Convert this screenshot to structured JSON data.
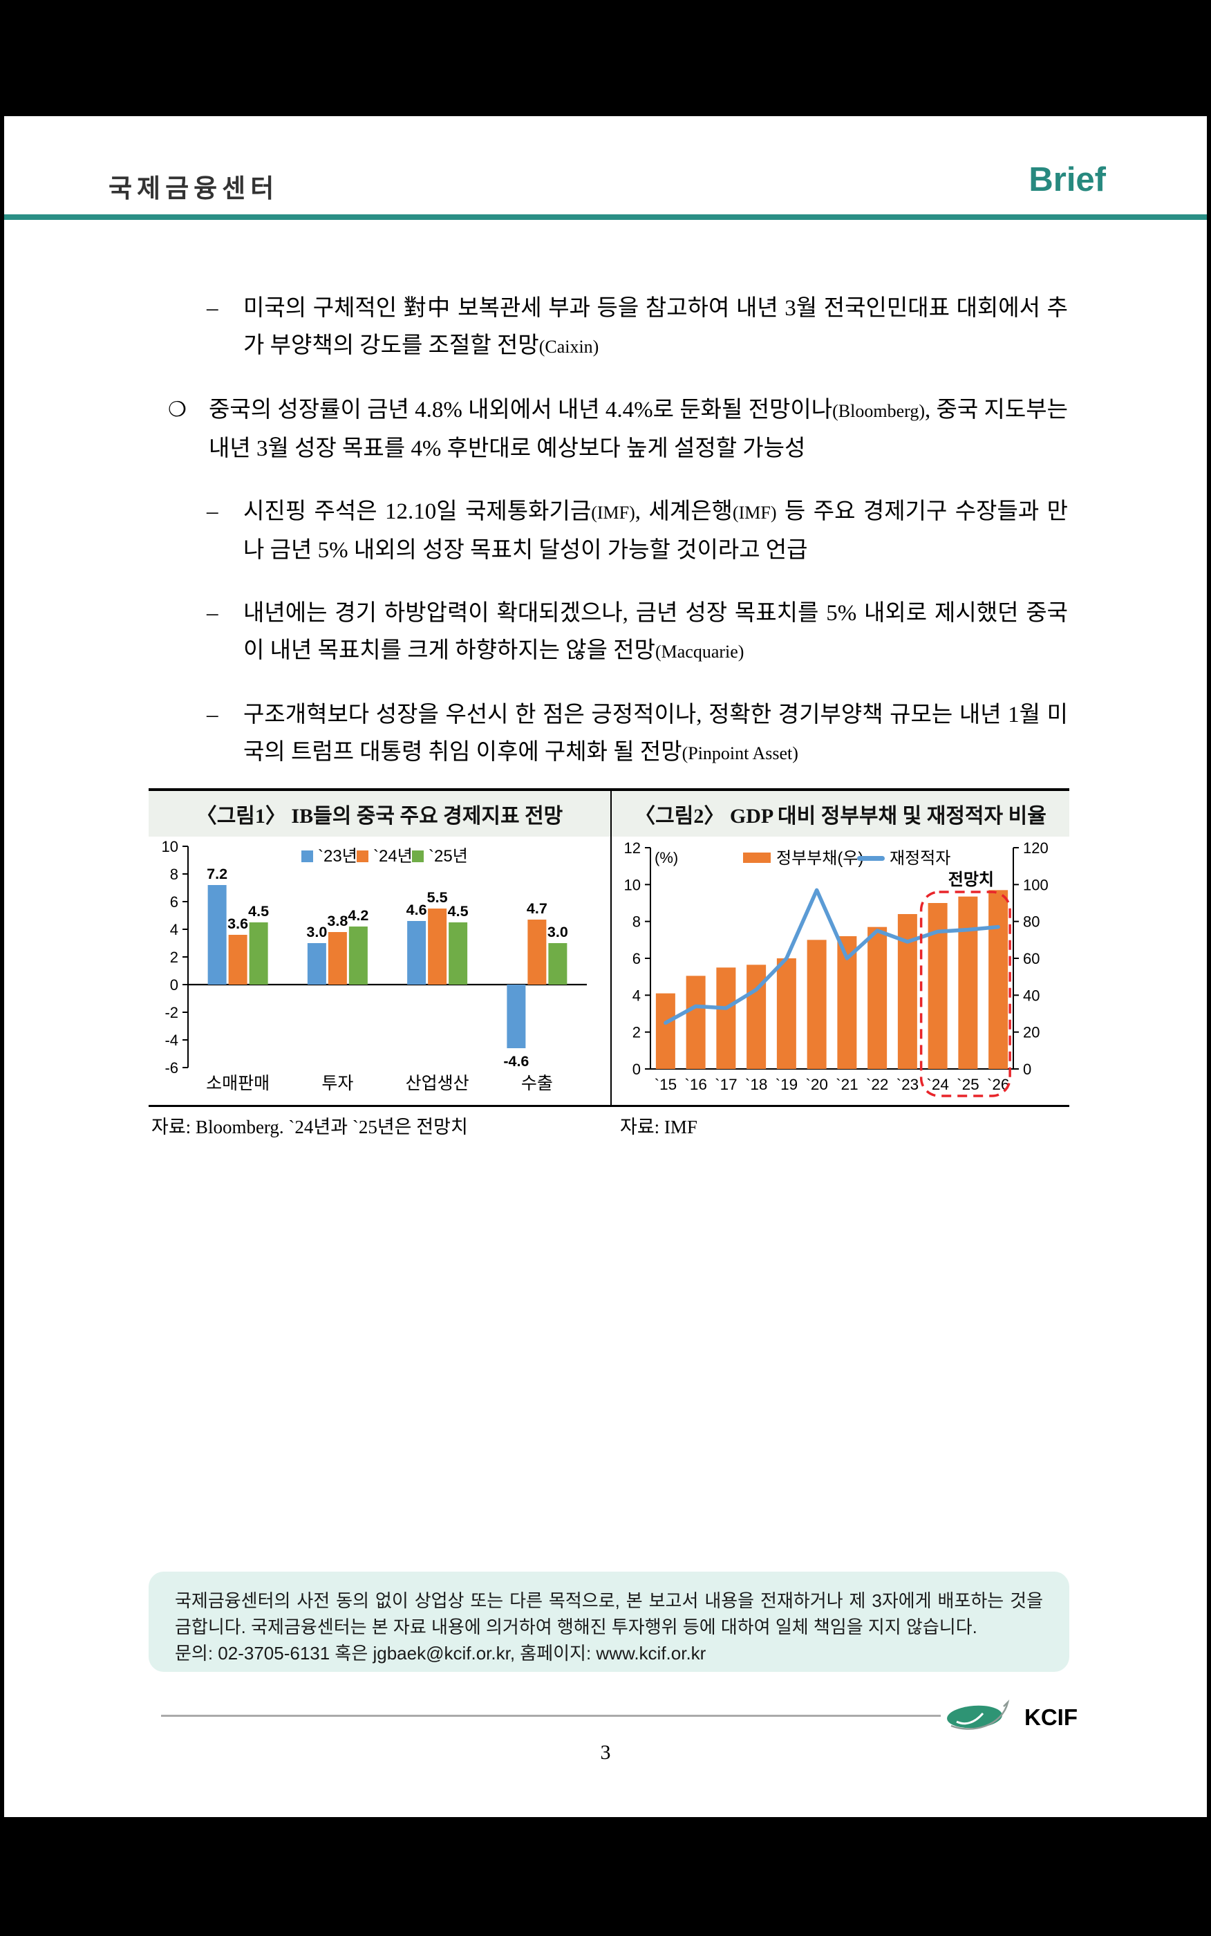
{
  "header": {
    "brand": "국제금융센터",
    "brief": "Brief"
  },
  "bullets": [
    {
      "marker": "–",
      "level": 2,
      "segments": [
        {
          "text": "미국의 구체적인 對中 보복관세 부과 등을 참고하여 내년 3월 전국인민대표 대회에서 추가 부양책의 강도를 조절할 전망",
          "small": false
        },
        {
          "text": "(Caixin)",
          "small": true
        }
      ]
    },
    {
      "marker": "❍",
      "level": 1,
      "segments": [
        {
          "text": "중국의 성장률이 금년 4.8% 내외에서 내년 4.4%로 둔화될 전망이나",
          "small": false
        },
        {
          "text": "(Bloomberg)",
          "small": true
        },
        {
          "text": ", 중국 지도부는 내년 3월 성장 목표를 4% 후반대로 예상보다 높게 설정할 가능성",
          "small": false
        }
      ]
    },
    {
      "marker": "–",
      "level": 2,
      "segments": [
        {
          "text": "시진핑 주석은 12.10일 국제통화기금",
          "small": false
        },
        {
          "text": "(IMF)",
          "small": true
        },
        {
          "text": ", 세계은행",
          "small": false
        },
        {
          "text": "(IMF)",
          "small": true
        },
        {
          "text": " 등 주요 경제기구 수장들과 만나 금년 5% 내외의 성장 목표치 달성이 가능할 것이라고 언급",
          "small": false
        }
      ]
    },
    {
      "marker": "–",
      "level": 2,
      "segments": [
        {
          "text": "내년에는 경기 하방압력이 확대되겠으나, 금년 성장 목표치를 5% 내외로 제시했던 중국이 내년 목표치를 크게 하향하지는 않을 전망",
          "small": false
        },
        {
          "text": "(Macquarie)",
          "small": true
        }
      ]
    },
    {
      "marker": "–",
      "level": 2,
      "segments": [
        {
          "text": "구조개혁보다 성장을 우선시 한 점은 긍정적이나, 정확한 경기부양책 규모는 내년 1월 미국의 트럼프 대통령 취임 이후에 구체화 될 전망",
          "small": false
        },
        {
          "text": "(Pinpoint Asset)",
          "small": true
        }
      ]
    }
  ],
  "figures": {
    "fig1_title": "〈그림1〉 IB들의 중국 주요 경제지표 전망",
    "fig2_title": "〈그림2〉 GDP 대비 정부부채 및 재정적자 비율",
    "fig1_source": "자료: Bloomberg. `24년과 `25년은 전망치",
    "fig2_source": "자료: IMF"
  },
  "chart_data": [
    {
      "type": "bar",
      "title": "IB들의 중국 주요 경제지표 전망",
      "categories": [
        "소매판매",
        "투자",
        "산업생산",
        "수출"
      ],
      "series": [
        {
          "name": "`23년",
          "color": "#5B9BD5",
          "values": [
            7.2,
            3.0,
            4.6,
            -4.6
          ]
        },
        {
          "name": "`24년",
          "color": "#ED7D31",
          "values": [
            3.6,
            3.8,
            5.5,
            4.7
          ]
        },
        {
          "name": "`25년",
          "color": "#70AD47",
          "values": [
            4.5,
            4.2,
            4.5,
            3.0
          ]
        }
      ],
      "ylim": [
        -6,
        10
      ],
      "ytick_step": 2,
      "data_labels": true,
      "grid": false,
      "legend_position": "top"
    },
    {
      "type": "bar+line",
      "title": "GDP 대비 정부부채 및 재정적자 비율",
      "categories": [
        "`15",
        "`16",
        "`17",
        "`18",
        "`19",
        "`20",
        "`21",
        "`22",
        "`23",
        "`24",
        "`25",
        "`26"
      ],
      "left_axis": {
        "label": "(%)",
        "range": [
          0,
          12
        ],
        "step": 2
      },
      "right_axis": {
        "range": [
          0,
          120
        ],
        "step": 20
      },
      "series": [
        {
          "name": "정부부채(우)",
          "type": "bar",
          "axis": "right",
          "color": "#ED7D31",
          "values": [
            41,
            50.5,
            55,
            56.5,
            60,
            70,
            72,
            77,
            84,
            90,
            93.5,
            97
          ]
        },
        {
          "name": "재정적자",
          "type": "line",
          "axis": "left",
          "color": "#5B9BD5",
          "values": [
            2.5,
            3.4,
            3.3,
            4.3,
            6.0,
            9.7,
            6.0,
            7.5,
            6.9,
            7.45,
            7.55,
            7.7
          ]
        }
      ],
      "annotation": {
        "label": "전망치",
        "color": "#e8252a",
        "categories": [
          "`24",
          "`25",
          "`26"
        ]
      },
      "grid": false,
      "legend_position": "top"
    }
  ],
  "footer": {
    "disclaimer": "국제금융센터의 사전 동의 없이 상업상 또는 다른 목적으로, 본 보고서 내용을 전재하거나 제 3자에게 배포하는 것을 금합니다. 국제금융센터는 본 자료 내용에 의거하여 행해진 투자행위 등에 대하여 일체 책임을 지지 않습니다.",
    "contact": "문의: 02-3705-6131 혹은 jgbaek@kcif.or.kr, 홈페이지: www.kcif.or.kr",
    "logo_text": "KCIF",
    "page_number": "3"
  },
  "colors": {
    "accent_teal": "#2a8f85",
    "bar_blue": "#5B9BD5",
    "bar_orange": "#ED7D31",
    "bar_green": "#70AD47",
    "annotation_red": "#e8252a",
    "logo_green": "#2E9474"
  }
}
